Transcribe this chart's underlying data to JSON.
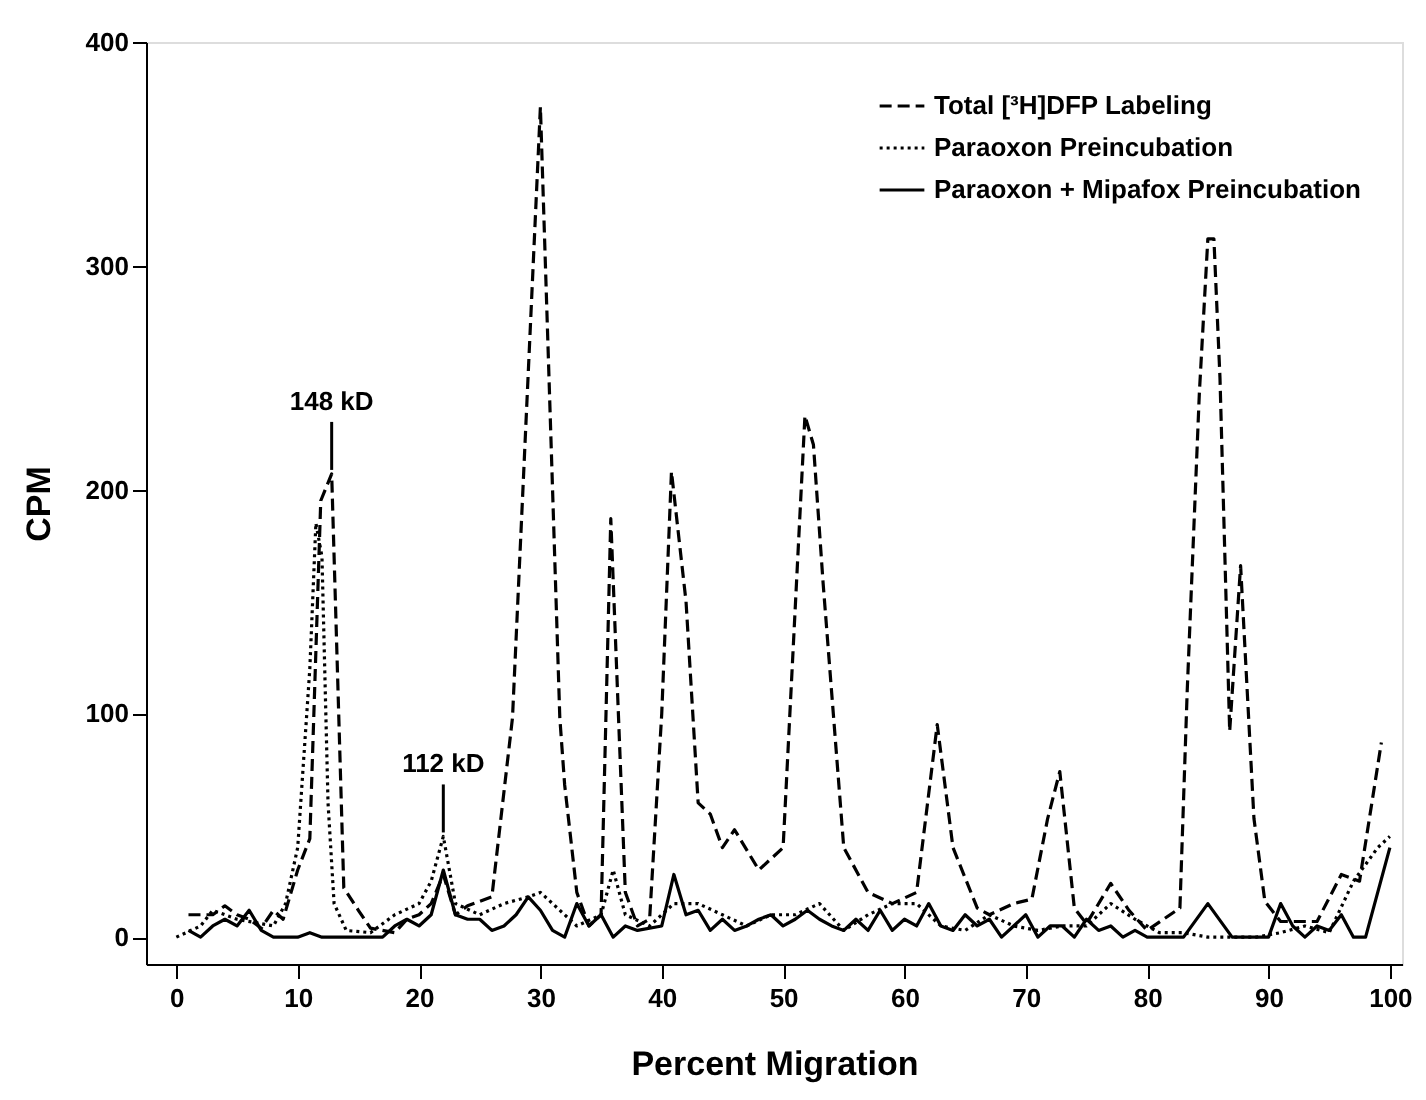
{
  "chart_data": {
    "type": "line",
    "xlabel": "Percent Migration",
    "ylabel": "CPM",
    "xlim": [
      -2.5,
      101
    ],
    "ylim": [
      -12,
      400
    ],
    "xticks": [
      0,
      10,
      20,
      30,
      40,
      50,
      60,
      70,
      80,
      90,
      100
    ],
    "yticks": [
      0,
      100,
      200,
      300,
      400
    ],
    "grid": false,
    "legend": "top right",
    "marker": "none",
    "annotations": [
      {
        "text": "148 kD",
        "x": 12.8,
        "y": 207
      },
      {
        "text": "112 kD",
        "x": 22,
        "y": 45
      }
    ],
    "series": [
      {
        "name": "Total [³H]DFP Labeling",
        "color": "#000000",
        "line_style": "dashed",
        "x": [
          1,
          3,
          4,
          5,
          6,
          7,
          8,
          8.8,
          10,
          11,
          11.9,
          12.8,
          13.8,
          15,
          16,
          18,
          19,
          20,
          21,
          22,
          23,
          24,
          26,
          27.7,
          30,
          31.6,
          32,
          33,
          34,
          35,
          35.8,
          37,
          38,
          39,
          40,
          40.8,
          42,
          43,
          44,
          45,
          46,
          48,
          50,
          51.8,
          52.5,
          53.3,
          55,
          57,
          59,
          61,
          62.7,
          64,
          66,
          67,
          69,
          70.5,
          71.8,
          72.8,
          74,
          75,
          77,
          78.5,
          80,
          82.7,
          83.3,
          84.3,
          85,
          85.5,
          86,
          86.8,
          87.7,
          88.8,
          89.7,
          91,
          94,
          96,
          97.5,
          99.3
        ],
        "values": [
          10,
          10,
          14,
          10,
          8,
          4,
          12,
          8,
          30,
          44,
          195,
          207,
          22,
          12,
          4,
          2,
          8,
          10,
          15,
          28,
          10,
          14,
          18,
          98,
          371,
          98,
          68,
          20,
          5,
          10,
          187,
          20,
          5,
          8,
          100,
          208,
          150,
          60,
          55,
          40,
          48,
          30,
          40,
          233,
          220,
          158,
          40,
          20,
          15,
          20,
          95,
          40,
          13,
          10,
          15,
          17,
          53,
          74,
          13,
          6,
          24,
          12,
          3,
          13,
          110,
          243,
          312,
          312,
          250,
          92,
          166,
          53,
          16,
          7,
          7,
          28,
          25,
          87
        ]
      },
      {
        "name": "Paraoxon Preincubation",
        "color": "#000000",
        "line_style": "dotted",
        "x": [
          0,
          2,
          3,
          5,
          8,
          9,
          10,
          11,
          11.5,
          12,
          12.5,
          13,
          14,
          16,
          18,
          20,
          21,
          22,
          23,
          25,
          27,
          29,
          30,
          31,
          33,
          35,
          36,
          37,
          39,
          41,
          43,
          45,
          47,
          49,
          51,
          53,
          55,
          57,
          59,
          61,
          63,
          65,
          67,
          69,
          71,
          73,
          75,
          77,
          79,
          81,
          83,
          85,
          87,
          89,
          91,
          93,
          95,
          97,
          99,
          100
        ],
        "values": [
          0,
          5,
          12,
          8,
          5,
          15,
          40,
          120,
          185,
          170,
          60,
          15,
          3,
          2,
          10,
          15,
          25,
          45,
          15,
          10,
          15,
          18,
          20,
          15,
          5,
          10,
          30,
          10,
          5,
          15,
          15,
          10,
          5,
          10,
          10,
          15,
          3,
          10,
          15,
          15,
          5,
          3,
          10,
          5,
          3,
          5,
          5,
          15,
          8,
          2,
          2,
          0,
          0,
          0,
          2,
          5,
          2,
          25,
          40,
          45
        ]
      },
      {
        "name": "Paraoxon + Mipafox Preincubation",
        "color": "#000000",
        "line_style": "solid",
        "x": [
          1,
          2,
          3,
          4,
          5,
          6,
          7,
          8,
          9,
          10,
          11,
          12,
          14,
          16,
          17,
          18,
          19,
          20,
          21,
          22,
          23,
          24,
          25,
          26,
          27,
          28,
          29,
          30,
          31,
          32,
          33,
          34,
          35,
          36,
          37,
          38,
          40,
          41,
          42,
          43,
          44,
          45,
          46,
          47,
          48,
          49,
          50,
          51,
          52,
          53,
          54,
          55,
          56,
          57,
          58,
          59,
          60,
          61,
          62,
          63,
          64,
          65,
          66,
          67,
          68,
          69,
          70,
          71,
          72,
          73,
          74,
          75,
          76,
          77,
          78,
          79,
          80,
          83,
          85,
          87,
          90,
          91,
          92,
          93,
          94,
          95,
          96,
          97,
          98,
          100
        ],
        "values": [
          3,
          0,
          5,
          8,
          5,
          12,
          3,
          0,
          0,
          0,
          2,
          0,
          0,
          0,
          0,
          5,
          8,
          5,
          10,
          30,
          10,
          8,
          8,
          3,
          5,
          10,
          18,
          12,
          3,
          0,
          15,
          5,
          10,
          0,
          5,
          3,
          5,
          28,
          10,
          12,
          3,
          8,
          3,
          5,
          8,
          10,
          5,
          8,
          12,
          8,
          5,
          3,
          8,
          3,
          12,
          3,
          8,
          5,
          15,
          5,
          3,
          10,
          5,
          8,
          0,
          5,
          10,
          0,
          5,
          5,
          0,
          8,
          3,
          5,
          0,
          3,
          0,
          0,
          15,
          0,
          0,
          15,
          5,
          0,
          5,
          3,
          10,
          0,
          0,
          40
        ]
      }
    ]
  }
}
